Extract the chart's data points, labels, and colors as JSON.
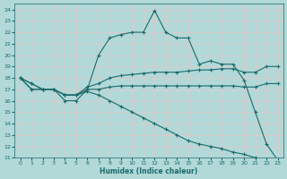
{
  "xlabel": "Humidex (Indice chaleur)",
  "bg_color": "#b2d8d8",
  "grid_color": "#e8c8c8",
  "line_color": "#1a6b6b",
  "xlim": [
    -0.5,
    23.5
  ],
  "ylim": [
    11,
    24.5
  ],
  "xticks": [
    0,
    1,
    2,
    3,
    4,
    5,
    6,
    7,
    8,
    9,
    10,
    11,
    12,
    13,
    14,
    15,
    16,
    17,
    18,
    19,
    20,
    21,
    22,
    23
  ],
  "yticks": [
    11,
    12,
    13,
    14,
    15,
    16,
    17,
    18,
    19,
    20,
    21,
    22,
    23,
    24
  ],
  "lines": [
    {
      "x": [
        0,
        1,
        2,
        3,
        4,
        5,
        6,
        7,
        8,
        9,
        10,
        11,
        12,
        13,
        14,
        15,
        16,
        17,
        18,
        19,
        20,
        21,
        22,
        23
      ],
      "y": [
        18,
        17,
        17,
        17,
        16,
        16,
        17,
        20,
        21.5,
        21.8,
        22,
        22,
        23.9,
        22,
        21.5,
        21.5,
        19.2,
        19.5,
        19.2,
        19.2,
        17.8,
        15,
        12.2,
        10.8
      ]
    },
    {
      "x": [
        0,
        1,
        2,
        3,
        4,
        5,
        6,
        7,
        8,
        9,
        10,
        11,
        12,
        13,
        14,
        15,
        16,
        17,
        18,
        19,
        20,
        21,
        22,
        23
      ],
      "y": [
        18,
        17.5,
        17,
        17,
        16.5,
        16.5,
        17.2,
        17.5,
        18.0,
        18.2,
        18.3,
        18.4,
        18.5,
        18.5,
        18.5,
        18.6,
        18.7,
        18.7,
        18.8,
        18.8,
        18.5,
        18.5,
        19.0,
        19.0
      ]
    },
    {
      "x": [
        0,
        1,
        2,
        3,
        4,
        5,
        6,
        7,
        8,
        9,
        10,
        11,
        12,
        13,
        14,
        15,
        16,
        17,
        18,
        19,
        20,
        21,
        22,
        23
      ],
      "y": [
        18,
        17.0,
        17.0,
        17.0,
        16.5,
        16.5,
        17.0,
        17.0,
        17.2,
        17.3,
        17.3,
        17.3,
        17.3,
        17.3,
        17.3,
        17.3,
        17.3,
        17.3,
        17.3,
        17.3,
        17.2,
        17.2,
        17.5,
        17.5
      ]
    },
    {
      "x": [
        0,
        1,
        2,
        3,
        4,
        5,
        6,
        7,
        8,
        9,
        10,
        11,
        12,
        13,
        14,
        15,
        16,
        17,
        18,
        19,
        20,
        21,
        22,
        23
      ],
      "y": [
        18,
        17.5,
        17.0,
        17.0,
        16.5,
        16.5,
        16.8,
        16.5,
        16.0,
        15.5,
        15.0,
        14.5,
        14.0,
        13.5,
        13.0,
        12.5,
        12.2,
        12.0,
        11.8,
        11.5,
        11.3,
        11.0,
        10.9,
        10.8
      ]
    }
  ]
}
